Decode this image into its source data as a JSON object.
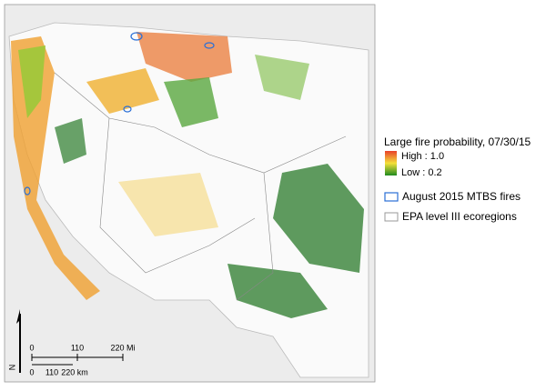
{
  "legend": {
    "title": "Large fire probability, 07/30/15",
    "gradient": {
      "high_label": "High : 1.0",
      "low_label": "Low : 0.2"
    },
    "items": [
      {
        "label": "August 2015 MTBS fires"
      },
      {
        "label": "EPA level III ecoregions"
      }
    ]
  },
  "scale_bar": {
    "miles": [
      "0",
      "110",
      "220 Mi"
    ],
    "km": [
      "0",
      "110",
      "220 km"
    ]
  },
  "north_arrow": {
    "label": "N"
  }
}
